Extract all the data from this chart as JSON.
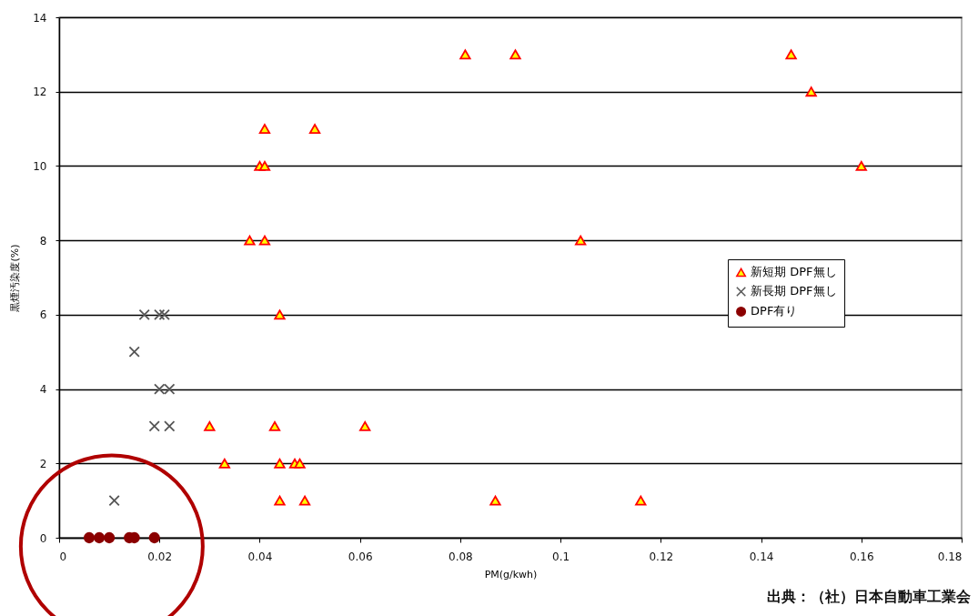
{
  "chart_data": {
    "type": "scatter",
    "xlabel": "PM(g/kwh)",
    "ylabel": "黒煙汚染度(%)",
    "annotations": [
      "出典：（社）日本自動車工業会"
    ],
    "xlim": [
      0,
      0.18
    ],
    "xticks": [
      0,
      0.02,
      0.04,
      0.06,
      0.08,
      0.1,
      0.12,
      0.14,
      0.16,
      0.18
    ],
    "ylim": [
      0,
      14
    ],
    "yticks": [
      0,
      2,
      4,
      6,
      8,
      10,
      12,
      14
    ],
    "grid": "y",
    "legend": "right",
    "series": [
      {
        "name": "新短期 DPF無し",
        "color": "#ffff00",
        "marker": "triangle",
        "x": [
          0.081,
          0.091,
          0.146,
          0.15,
          0.041,
          0.051,
          0.04,
          0.041,
          0.16,
          0.038,
          0.041,
          0.104,
          0.044,
          0.03,
          0.043,
          0.061,
          0.033,
          0.044,
          0.047,
          0.048,
          0.044,
          0.049,
          0.087,
          0.116
        ],
        "values": [
          13,
          13,
          13,
          12,
          11,
          11,
          10,
          10,
          10,
          8,
          8,
          8,
          6,
          3,
          3,
          3,
          2,
          2,
          2,
          2,
          1,
          1,
          1,
          1
        ]
      },
      {
        "name": "新長期 DPF無し",
        "color": "#555555",
        "marker": "cross",
        "x": [
          0.017,
          0.02,
          0.021,
          0.015,
          0.02,
          0.022,
          0.019,
          0.022,
          0.011
        ],
        "values": [
          6,
          6,
          6,
          5,
          4,
          4,
          3,
          3,
          1
        ]
      },
      {
        "name": "DPF有り",
        "color": "#8b0000",
        "marker": "circle",
        "x": [
          0.006,
          0.008,
          0.01,
          0.014,
          0.015,
          0.019
        ],
        "values": [
          0,
          0,
          0,
          0,
          0,
          0
        ]
      }
    ]
  }
}
